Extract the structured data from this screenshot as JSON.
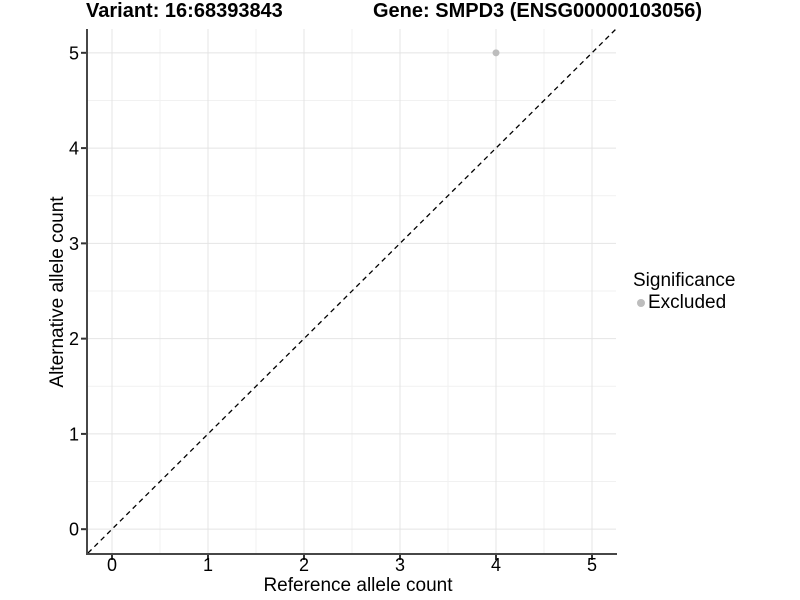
{
  "header": {
    "variant_title": "Variant: 16:68393843",
    "gene_title": "Gene: SMPD3 (ENSG00000103056)"
  },
  "chart_data": {
    "type": "scatter",
    "xlabel": "Reference allele count",
    "ylabel": "Alternative allele count",
    "xlim": [
      -0.25,
      5.25
    ],
    "ylim": [
      -0.25,
      5.25
    ],
    "xticks": [
      0,
      1,
      2,
      3,
      4,
      5
    ],
    "yticks": [
      0,
      1,
      2,
      3,
      4,
      5
    ],
    "x_minor_ticks": [
      0.5,
      1.5,
      2.5,
      3.5,
      4.5
    ],
    "y_minor_ticks": [
      0.5,
      1.5,
      2.5,
      3.5,
      4.5
    ],
    "grid": "major and minor gridlines, white panel background",
    "series": [
      {
        "name": "Excluded",
        "color": "#bdbdbd",
        "marker_radius": 3.5,
        "points": [
          [
            4,
            5
          ]
        ]
      }
    ],
    "reference_line": {
      "kind": "identity y=x",
      "dashed": true,
      "color": "#000000"
    },
    "legend": {
      "title": "Significance",
      "position": "right",
      "items": [
        {
          "label": "Excluded",
          "color": "#bdbdbd"
        }
      ]
    }
  },
  "colors": {
    "background": "#ffffff",
    "grid_major": "#e4e4e4",
    "grid_minor": "#f1f1f1",
    "axis_line": "#474747",
    "tick_mark": "#333333",
    "text": "#000000"
  }
}
